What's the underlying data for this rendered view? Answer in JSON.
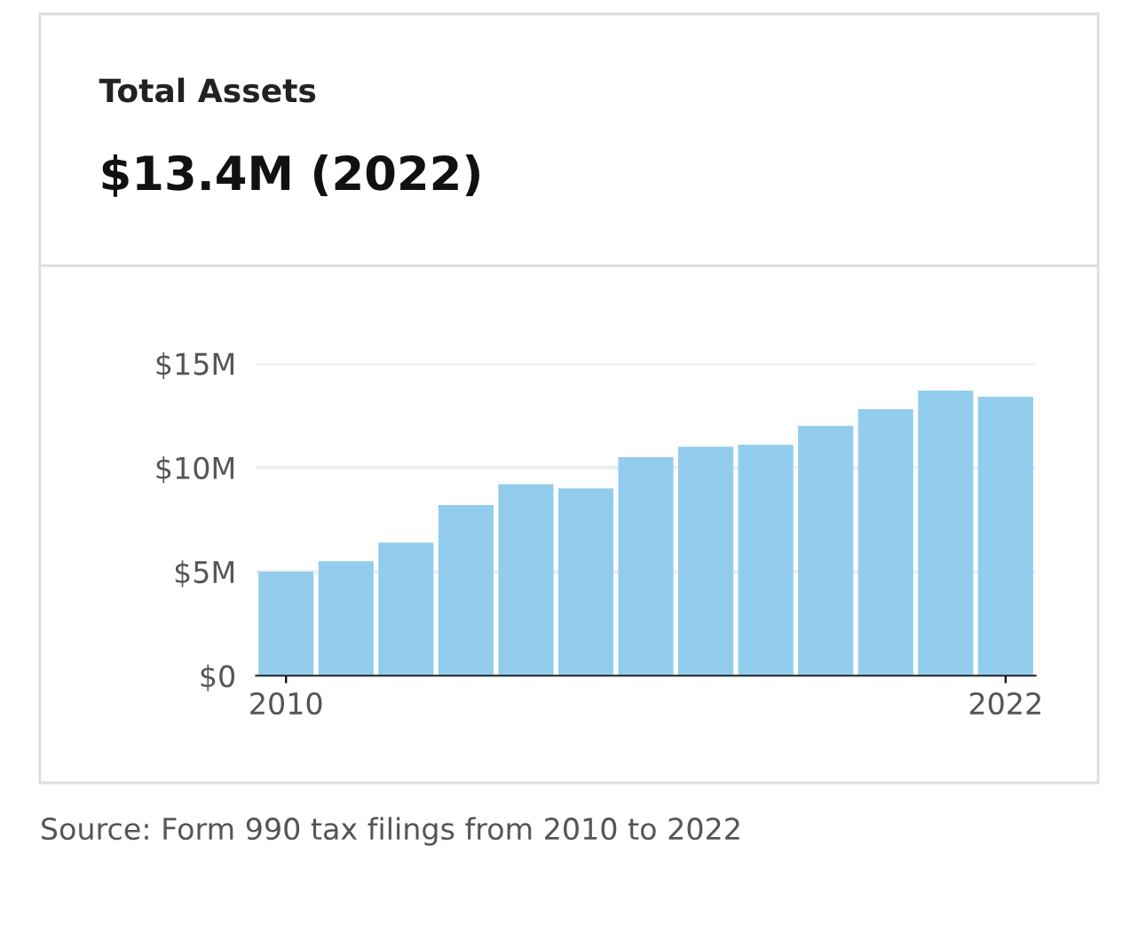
{
  "chart_data": {
    "type": "bar",
    "title": "Total Assets",
    "subtitle": "$13.4M (2022)",
    "categories": [
      "2010",
      null,
      null,
      null,
      null,
      null,
      null,
      null,
      null,
      null,
      null,
      null,
      "2022"
    ],
    "values": [
      5.0,
      5.5,
      6.4,
      8.2,
      9.2,
      9.0,
      10.5,
      11.0,
      11.1,
      12.0,
      12.8,
      13.7,
      13.4
    ],
    "color": "#93cdee",
    "ylim": [
      0,
      15
    ],
    "yticks": [
      {
        "value": 0,
        "label": "$0"
      },
      {
        "value": 5,
        "label": "$5M"
      },
      {
        "value": 10,
        "label": "$10M"
      },
      {
        "value": 15,
        "label": "$15M"
      }
    ],
    "grid": "y",
    "annotations": [
      "Source: Form 990 tax filings from 2010 to 2022"
    ]
  }
}
